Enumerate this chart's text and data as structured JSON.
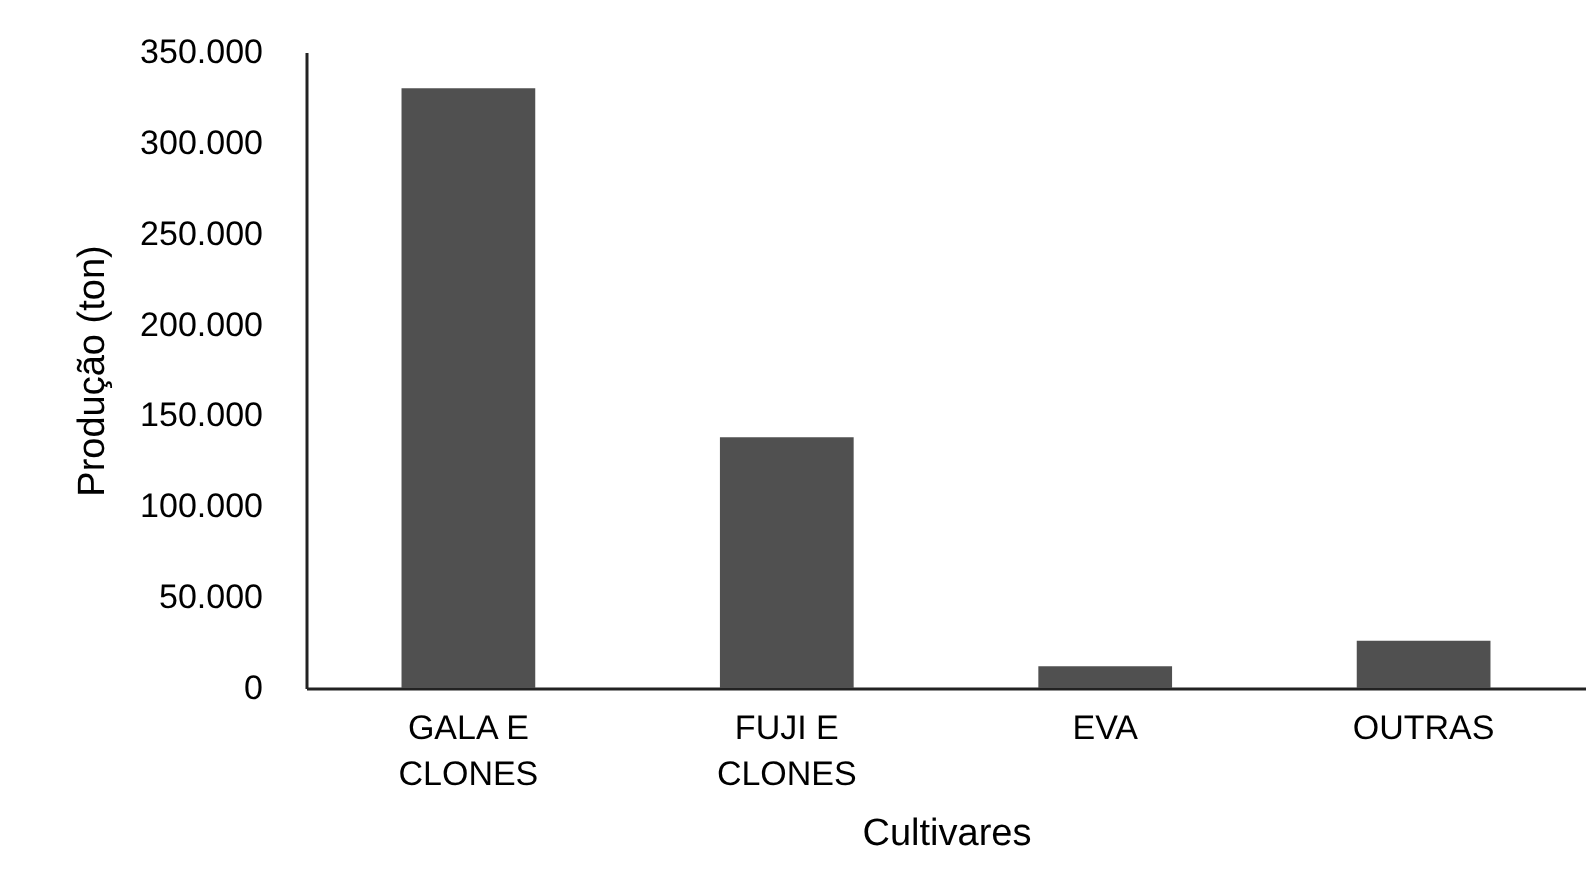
{
  "chart_data": {
    "type": "bar",
    "xlabel": "Cultivares",
    "ylabel": "Produção (ton)",
    "categories": [
      "GALA E CLONES",
      "FUJI E CLONES",
      "EVA",
      "OUTRAS"
    ],
    "values": [
      330000,
      138000,
      12000,
      26000
    ],
    "color": "#505050",
    "ylim": [
      0,
      350000
    ],
    "yticks": [
      0,
      {
        "value": 50000,
        "label": "50.000"
      },
      {
        "value": 100000,
        "label": "100.000"
      },
      {
        "value": 150000,
        "label": "150.000"
      },
      {
        "value": 200000,
        "label": "200.000"
      },
      {
        "value": 250000,
        "label": "250.000"
      },
      {
        "value": 300000,
        "label": "300.000"
      },
      {
        "value": 350000,
        "label": "350.000"
      }
    ],
    "grid": false
  }
}
